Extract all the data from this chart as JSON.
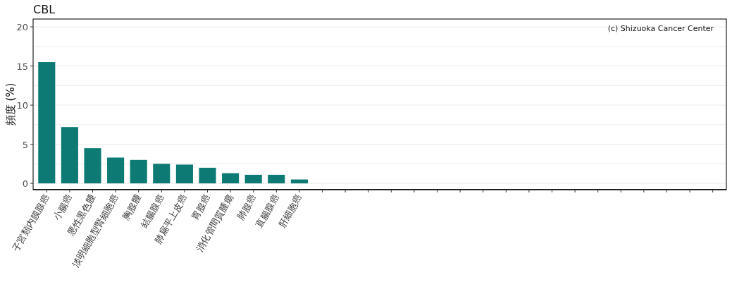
{
  "chart_data": {
    "type": "bar",
    "title": "CBL",
    "ylabel": "頻度 (%)",
    "categories": [
      "子宮類内膜腺癌",
      "小腸癌",
      "悪性黒色腫",
      "淡明細胞型腎細胞癌",
      "胸腺腫",
      "結腸腺癌",
      "肺扁平上皮癌",
      "胃腺癌",
      "消化管間質腫瘍",
      "肺腺癌",
      "直腸腺癌",
      "肝細胞癌",
      null,
      null,
      null,
      null,
      null,
      null,
      null,
      null,
      null,
      null,
      null,
      null,
      null,
      null,
      null,
      null,
      null,
      null
    ],
    "values": [
      15.5,
      7.2,
      4.5,
      3.3,
      3.0,
      2.5,
      2.4,
      2.0,
      1.3,
      1.1,
      1.1,
      0.5,
      null,
      null,
      null,
      null,
      null,
      null,
      null,
      null,
      null,
      null,
      null,
      null,
      null,
      null,
      null,
      null,
      null,
      null
    ],
    "color": "#0d7b74",
    "ylim": [
      -0.8,
      21
    ],
    "yticks": [
      0,
      {
        "value": 2.5,
        "label": null
      },
      5,
      {
        "value": 7.5,
        "label": null
      },
      10,
      {
        "value": 12.5,
        "label": null
      },
      15,
      {
        "value": 17.5,
        "label": null
      },
      20
    ],
    "grid": "y",
    "annotations": [
      "(c) Shizuoka Cancer Center"
    ]
  }
}
